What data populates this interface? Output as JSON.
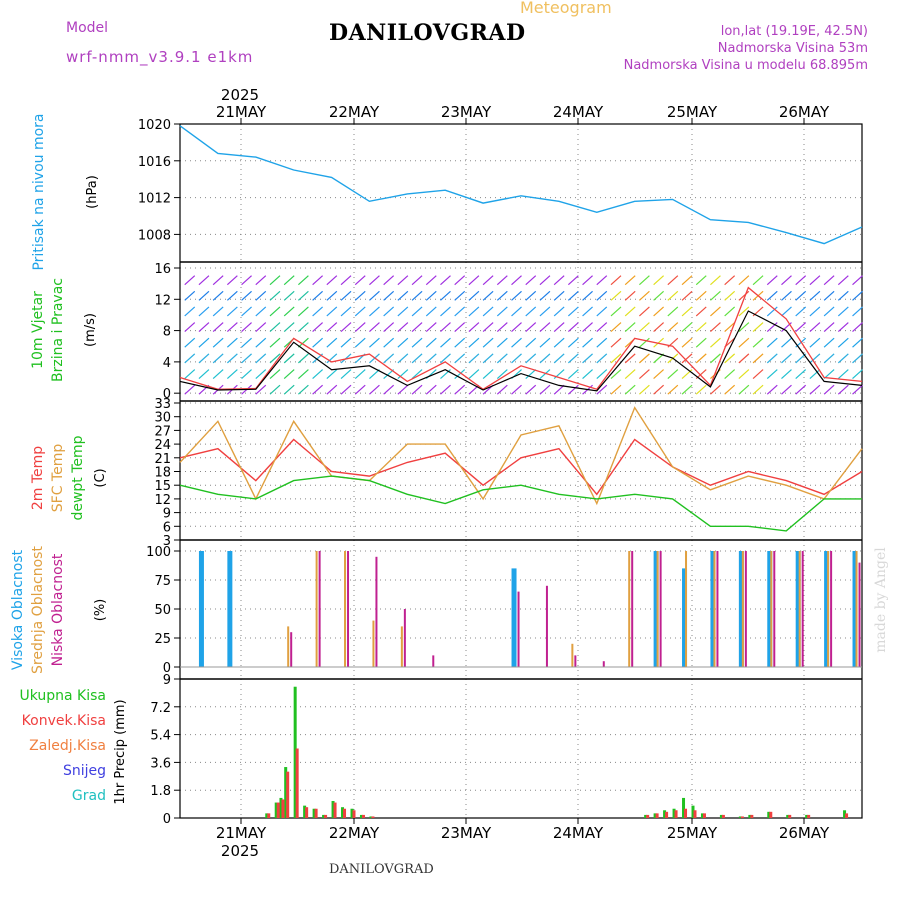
{
  "header": {
    "title": "DANILOVGRAD",
    "meteogram": "Meteogram",
    "model_label": "Model",
    "model_value": "wrf-nmm_v3.9.1 e1km",
    "lonlat": "lon,lat (19.19E, 42.5N)",
    "elevation": "Nadmorska Visina 53m",
    "model_elevation": "Nadmorska Visina u modelu 68.895m",
    "footer_title": "DANILOVGRAD",
    "credit": "made by Angel"
  },
  "colors": {
    "pressure": "#1fa3e8",
    "temp2m": "#f04040",
    "sfc": "#e0a040",
    "dewpt": "#20c020",
    "high_cloud": "#1fa3e8",
    "mid_cloud": "#e0a040",
    "low_cloud": "#c02090",
    "precip_total": "#20c020",
    "precip_conv": "#f04040",
    "precip_frz": "#f08040",
    "snow": "#4040e0",
    "grad": "#20c0c0"
  },
  "chart_data": [
    {
      "type": "line",
      "id": "pressure",
      "ylabel": "Pritisak na nivou mora",
      "unit": "(hPa)",
      "ylim": [
        1005,
        1020
      ],
      "yticks": [
        1008,
        1012,
        1016,
        1020
      ],
      "x_ticks": [
        "21MAY",
        "22MAY",
        "23MAY",
        "24MAY",
        "25MAY",
        "26MAY"
      ],
      "x_year": "2025",
      "x_hours": [
        0,
        8,
        16,
        24,
        32,
        40,
        48,
        56,
        64,
        72,
        80,
        88,
        96,
        104,
        112,
        120,
        128,
        136,
        144
      ],
      "series": [
        {
          "name": "Pritisak na nivou mora",
          "values": [
            1019.8,
            1016.8,
            1016.4,
            1015.0,
            1014.2,
            1011.6,
            1012.4,
            1012.8,
            1011.4,
            1012.2,
            1011.6,
            1010.4,
            1011.6,
            1011.8,
            1009.6,
            1009.3,
            1008.2,
            1007.0,
            1008.8
          ]
        }
      ]
    },
    {
      "type": "line",
      "id": "wind",
      "ylabel": [
        "10m Vjetar",
        "Brzina i Pravac"
      ],
      "unit": "(m/s)",
      "ylim": [
        -1,
        16
      ],
      "yticks": [
        0,
        4,
        8,
        12,
        16
      ],
      "x_hours": [
        0,
        8,
        16,
        24,
        32,
        40,
        48,
        56,
        64,
        72,
        80,
        88,
        96,
        104,
        112,
        120,
        128,
        136,
        144
      ],
      "series": [
        {
          "name": "gust",
          "values": [
            2.0,
            0.5,
            0.6,
            7.0,
            4.0,
            5.0,
            1.5,
            4.0,
            0.5,
            3.5,
            2.0,
            0.5,
            7.0,
            6.0,
            1.0,
            13.5,
            9.5,
            2.0,
            1.5
          ]
        },
        {
          "name": "speed",
          "values": [
            1.5,
            0.4,
            0.5,
            6.5,
            3.0,
            3.5,
            1.0,
            3.0,
            0.4,
            2.5,
            1.0,
            0.3,
            6.0,
            4.5,
            0.8,
            10.5,
            8.0,
            1.5,
            1.0
          ]
        }
      ]
    },
    {
      "type": "line",
      "id": "temperature",
      "ylabel": [
        "2m Temp",
        "SFC Temp",
        "dewpt Temp"
      ],
      "unit": "(C)",
      "ylim": [
        3,
        33
      ],
      "yticks": [
        3,
        6,
        9,
        12,
        15,
        18,
        21,
        24,
        27,
        30,
        33
      ],
      "x_hours": [
        0,
        8,
        16,
        24,
        32,
        40,
        48,
        56,
        64,
        72,
        80,
        88,
        96,
        104,
        112,
        120,
        128,
        136,
        144
      ],
      "series": [
        {
          "name": "2m Temp",
          "values": [
            21,
            23,
            16,
            25,
            18,
            17,
            20,
            22,
            15,
            21,
            23,
            13,
            25,
            19,
            15,
            18,
            16,
            13,
            18
          ]
        },
        {
          "name": "SFC Temp",
          "values": [
            20,
            29,
            12,
            29,
            17,
            16,
            24,
            24,
            12,
            26,
            28,
            11,
            32,
            19,
            14,
            17,
            15,
            12,
            23
          ]
        },
        {
          "name": "dewpt Temp",
          "values": [
            15,
            13,
            12,
            16,
            17,
            16,
            13,
            11,
            14,
            15,
            13,
            12,
            13,
            12,
            6,
            6,
            5,
            12,
            12
          ]
        }
      ]
    },
    {
      "type": "bar",
      "id": "clouds",
      "ylabel": [
        "Visoka Oblacnost",
        "Srednja Oblacnost",
        "Niska Oblacnost"
      ],
      "unit": "(%)",
      "ylim": [
        0,
        100
      ],
      "yticks": [
        0,
        25,
        50,
        75,
        100
      ],
      "x_hours": [
        4,
        10,
        16,
        22,
        28,
        34,
        40,
        46,
        52,
        58,
        64,
        70,
        76,
        82,
        88,
        94,
        100,
        106,
        112,
        118,
        124,
        130,
        136,
        142
      ],
      "series": [
        {
          "name": "Visoka Oblacnost",
          "values": [
            100,
            100,
            0,
            0,
            0,
            0,
            0,
            0,
            0,
            0,
            0,
            85,
            0,
            0,
            0,
            0,
            100,
            85,
            100,
            100,
            100,
            100,
            100,
            100
          ]
        },
        {
          "name": "Srednja Oblacnost",
          "values": [
            0,
            0,
            0,
            35,
            100,
            100,
            40,
            35,
            0,
            0,
            0,
            0,
            0,
            20,
            0,
            100,
            100,
            100,
            100,
            100,
            100,
            100,
            100,
            100
          ]
        },
        {
          "name": "Niska Oblacnost",
          "values": [
            0,
            0,
            0,
            30,
            100,
            100,
            95,
            50,
            10,
            0,
            0,
            65,
            70,
            10,
            5,
            100,
            100,
            0,
            100,
            100,
            100,
            100,
            100,
            90
          ]
        }
      ]
    },
    {
      "type": "bar",
      "id": "precip",
      "ylabel": "1hr Precip",
      "unit": "(mm)",
      "ylim": [
        0,
        9
      ],
      "yticks": [
        0,
        1.8,
        3.6,
        5.4,
        7.2,
        9
      ],
      "legend": [
        "Ukupna Kisa",
        "Konvek.Kisa",
        "Zaledj.Kisa",
        "Snijeg",
        "Grad"
      ],
      "x_hours": [
        18,
        20,
        21,
        22,
        24,
        26,
        28,
        30,
        32,
        34,
        36,
        38,
        40,
        98,
        100,
        102,
        104,
        106,
        108,
        110,
        114,
        118,
        120,
        124,
        128,
        132,
        140
      ],
      "series": [
        {
          "name": "Ukupna Kisa",
          "values": [
            0.3,
            1.0,
            1.3,
            3.3,
            8.5,
            0.8,
            0.6,
            0.2,
            1.1,
            0.7,
            0.6,
            0.2,
            0.1,
            0.2,
            0.3,
            0.5,
            0.6,
            1.3,
            0.8,
            0.3,
            0.2,
            0.1,
            0.2,
            0.4,
            0.2,
            0.2,
            0.5
          ]
        },
        {
          "name": "Konvek.Kisa",
          "values": [
            0.3,
            1.0,
            1.2,
            3.0,
            4.5,
            0.7,
            0.6,
            0.2,
            1.0,
            0.6,
            0.5,
            0.2,
            0.1,
            0.2,
            0.3,
            0.4,
            0.5,
            0.6,
            0.5,
            0.3,
            0.2,
            0.1,
            0.2,
            0.4,
            0.2,
            0.2,
            0.3
          ]
        }
      ]
    }
  ]
}
